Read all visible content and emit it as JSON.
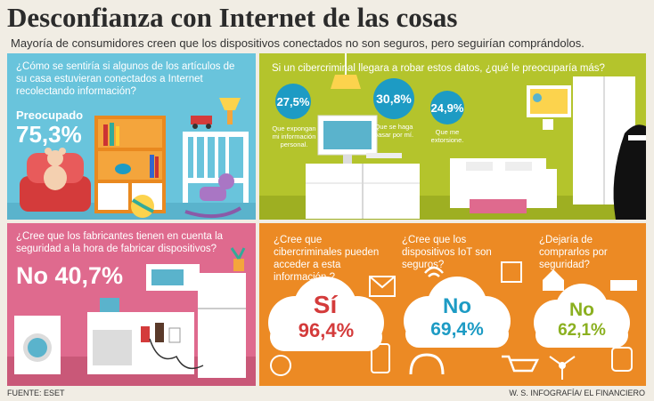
{
  "title": "Desconfianza con Internet de las cosas",
  "subtitle": "Mayoría de consumidores creen que los dispositivos conectados no son seguros, pero seguirían comprándolos.",
  "panel1": {
    "question": "¿Cómo se sentiría si algunos de los artículos de su casa estuvieran conectados a Internet recolectando información?",
    "answer_label": "Preocupado",
    "answer_value": "75,3%"
  },
  "panel2": {
    "question": "Si un cibercriminal llegara a robar estos datos, ¿qué le preocuparía más?",
    "items": [
      {
        "value": "27,5%",
        "label": "Que expongan mi información personal."
      },
      {
        "value": "30,8%",
        "label": "Que se haga pasar por mí."
      },
      {
        "value": "24,9%",
        "label": "Que me extorsione."
      }
    ]
  },
  "panel3": {
    "question": "¿Cree que los fabricantes tienen en cuenta la seguridad a la hora de fabricar dispositivos?",
    "answer": "No 40,7%"
  },
  "panel4": {
    "items": [
      {
        "question": "¿Cree que cibercriminales pueden acceder a esta información ?",
        "answer": "Sí",
        "value": "96,4%"
      },
      {
        "question": "¿Cree que los dispositivos IoT son seguros?",
        "answer": "No",
        "value": "69,4%"
      },
      {
        "question": "¿Dejaría de comprarlos por seguridad?",
        "answer": "No",
        "value": "62,1%"
      }
    ]
  },
  "footer": {
    "source": "FUENTE: ESET",
    "credit": "W. S. INFOGRAFÍA/ EL FINANCIERO"
  },
  "colors": {
    "panel1": "#69c4dc",
    "panel2": "#b4c42c",
    "panel3": "#df6a8e",
    "panel4": "#ec8a24",
    "bubble": "#1d9bc4",
    "cloud_text_1": "#d43b3b",
    "cloud_text_2": "#1d9bc4",
    "cloud_text_3": "#8bb020"
  }
}
